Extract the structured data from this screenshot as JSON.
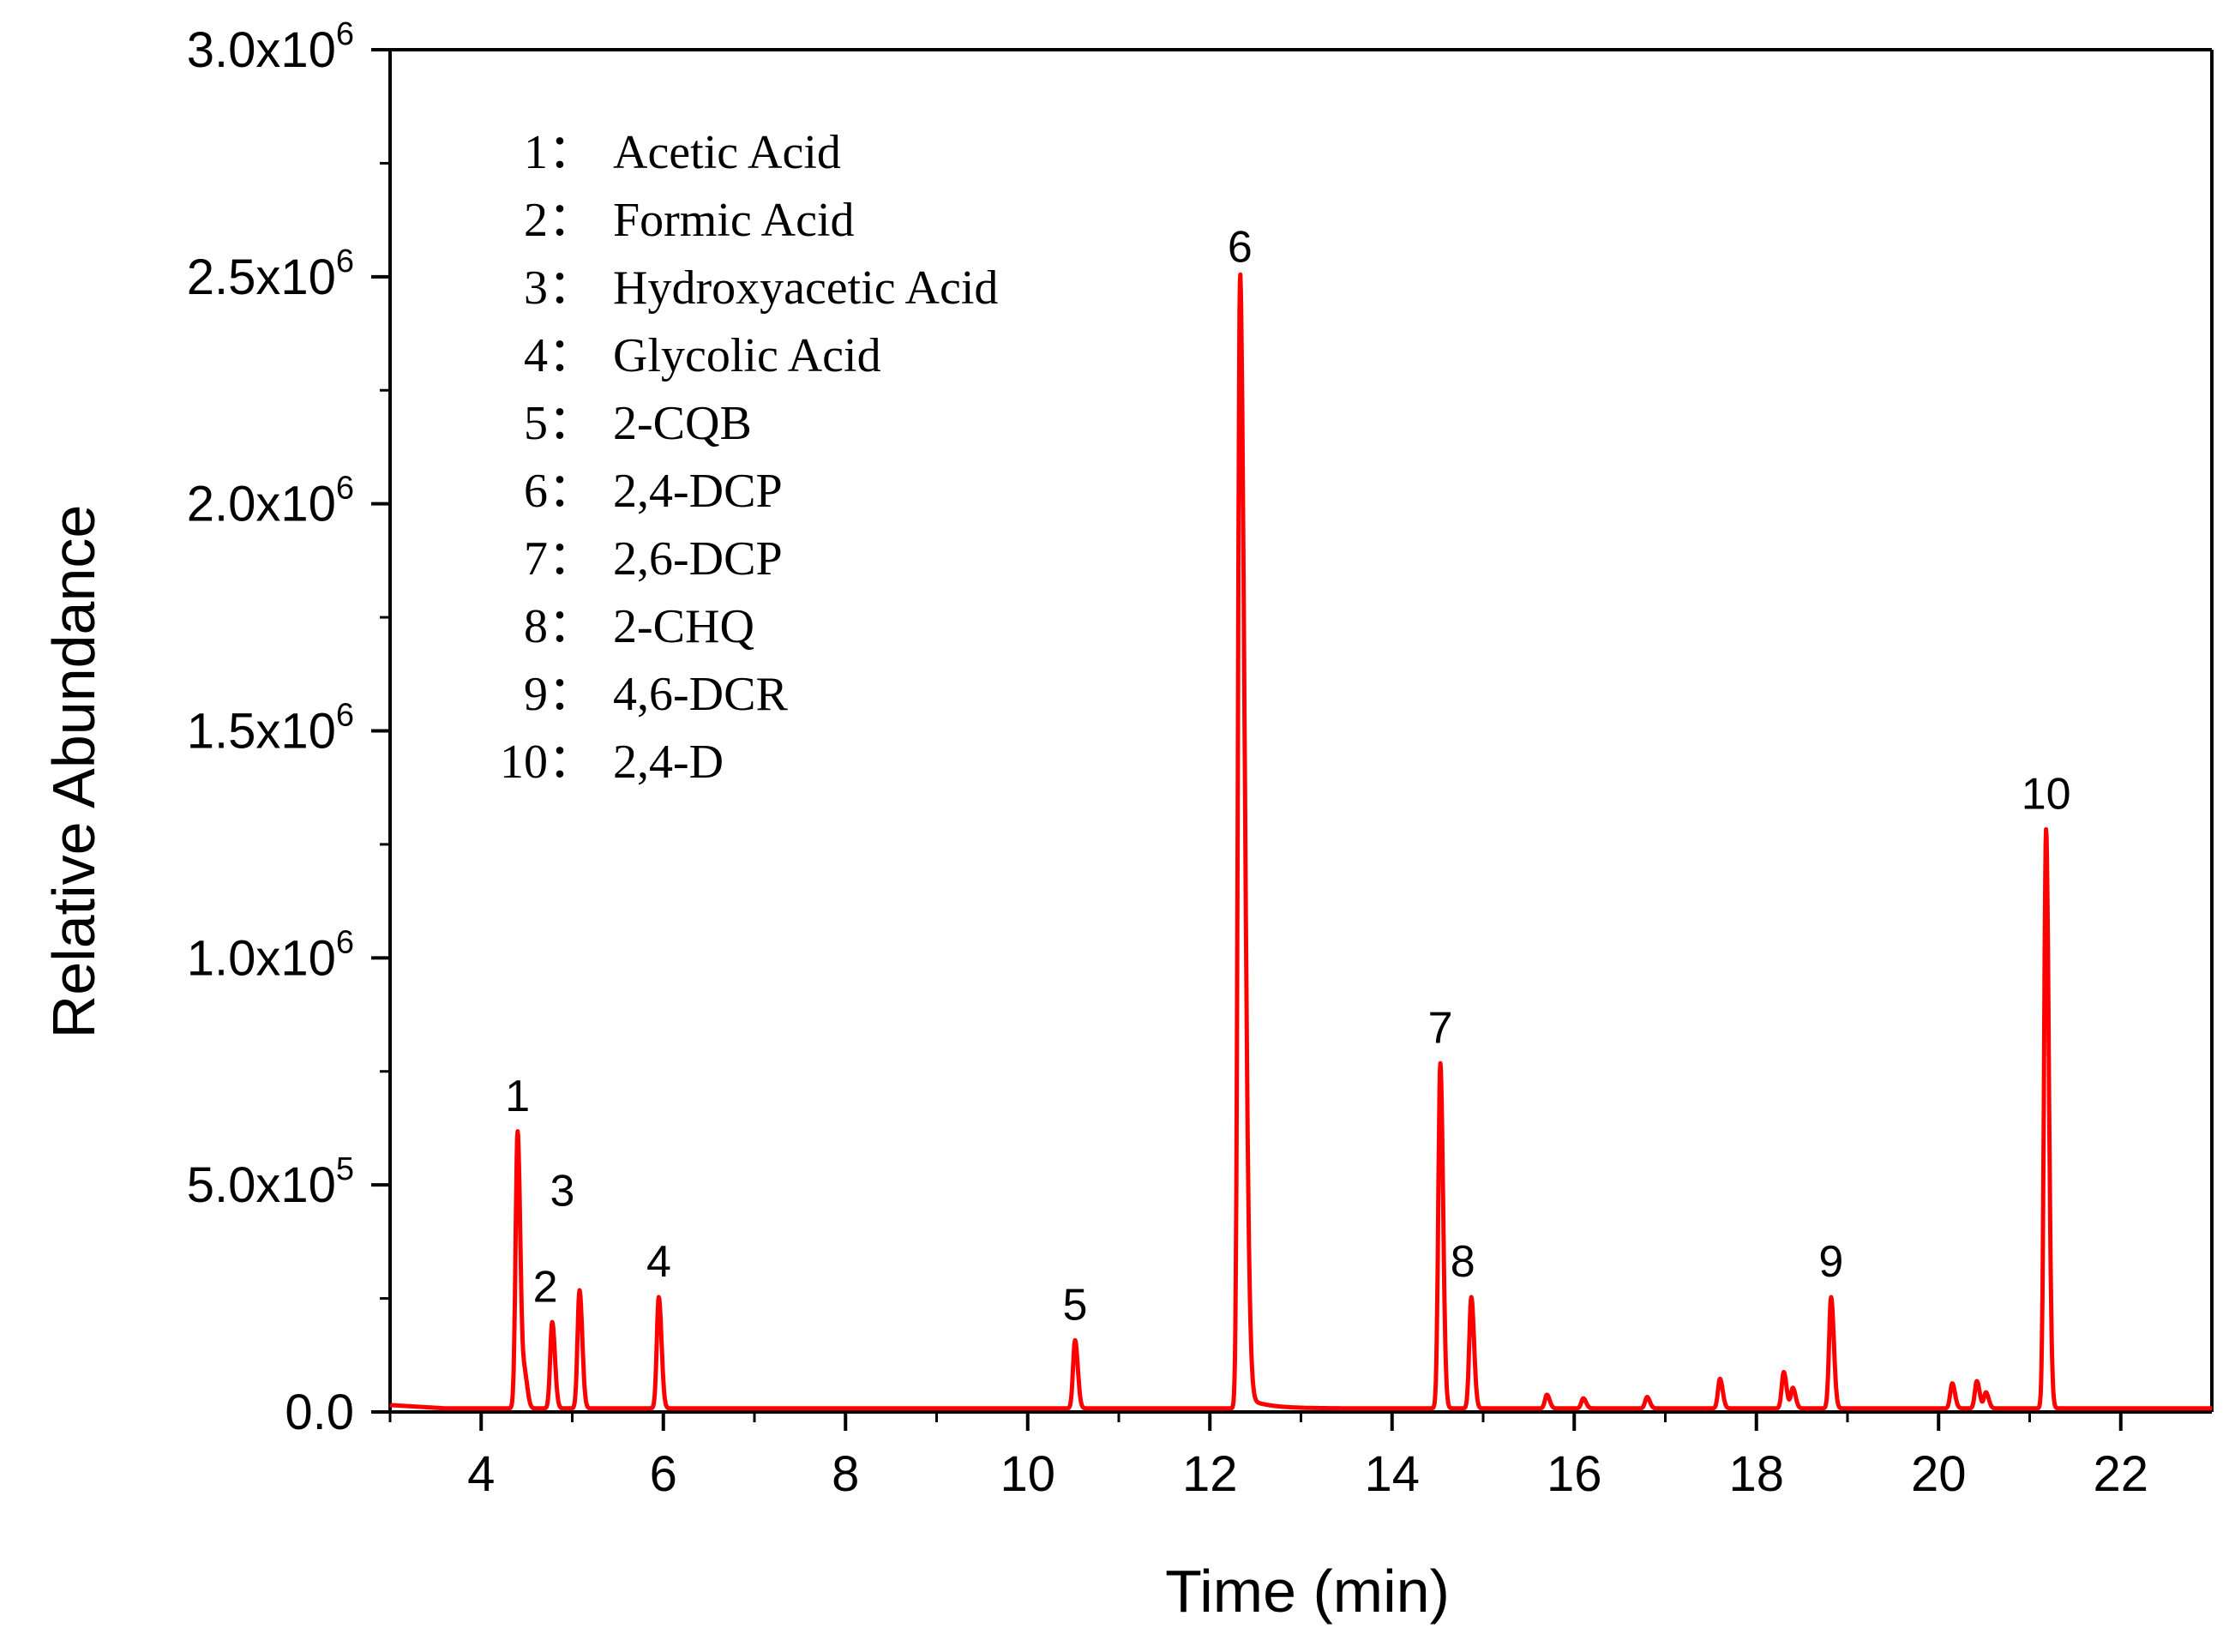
{
  "chart_data": {
    "type": "line",
    "xlabel": "Time (min)",
    "ylabel": "Relative Abundance",
    "xlim": [
      3.0,
      23.0
    ],
    "ylim": [
      0,
      3000000
    ],
    "x_ticks": [
      4,
      6,
      8,
      10,
      12,
      14,
      16,
      18,
      20,
      22
    ],
    "x_tick_labels": [
      "4",
      "6",
      "8",
      "10",
      "12",
      "14",
      "16",
      "18",
      "20",
      "22"
    ],
    "y_ticks": [
      0,
      500000,
      1000000,
      1500000,
      2000000,
      2500000,
      3000000
    ],
    "y_tick_labels": [
      {
        "mant": "0.0",
        "exp": ""
      },
      {
        "mant": "5.0x10",
        "exp": "5"
      },
      {
        "mant": "1.0x10",
        "exp": "6"
      },
      {
        "mant": "1.5x10",
        "exp": "6"
      },
      {
        "mant": "2.0x10",
        "exp": "6"
      },
      {
        "mant": "2.5x10",
        "exp": "6"
      },
      {
        "mant": "3.0x10",
        "exp": "6"
      }
    ],
    "grid": false,
    "line_color": "#ff0000",
    "series": [
      {
        "peaks": [
          {
            "label": "1",
            "x": 4.4,
            "y": 610000
          },
          {
            "label": "2",
            "x": 4.78,
            "y": 190000
          },
          {
            "label": "3",
            "x": 5.08,
            "y": 260000
          },
          {
            "label": "4",
            "x": 5.95,
            "y": 245000
          },
          {
            "label": "5",
            "x": 10.52,
            "y": 150000
          },
          {
            "label": "6",
            "x": 12.33,
            "y": 2480000
          },
          {
            "label": "7",
            "x": 14.53,
            "y": 760000
          },
          {
            "label": "8",
            "x": 14.87,
            "y": 245000
          },
          {
            "label": "9",
            "x": 18.82,
            "y": 245000
          },
          {
            "label": "10",
            "x": 21.18,
            "y": 1275000
          }
        ],
        "minor_peaks": [
          {
            "x": 4.48,
            "y": 70000
          },
          {
            "x": 15.7,
            "y": 30000
          },
          {
            "x": 16.1,
            "y": 22000
          },
          {
            "x": 16.8,
            "y": 25000
          },
          {
            "x": 17.6,
            "y": 65000
          },
          {
            "x": 18.3,
            "y": 80000
          },
          {
            "x": 18.4,
            "y": 45000
          },
          {
            "x": 20.15,
            "y": 55000
          },
          {
            "x": 20.42,
            "y": 60000
          },
          {
            "x": 20.52,
            "y": 35000
          }
        ]
      }
    ],
    "legend": {
      "placement": "top-left",
      "entries": [
        {
          "num": "1：",
          "name": "Acetic Acid"
        },
        {
          "num": "2：",
          "name": "Formic Acid"
        },
        {
          "num": "3：",
          "name": "Hydroxyacetic Acid"
        },
        {
          "num": "4：",
          "name": "Glycolic Acid"
        },
        {
          "num": "5：",
          "name": "2-CQB"
        },
        {
          "num": "6：",
          "name": "2,4-DCP"
        },
        {
          "num": "7：",
          "name": "2,6-DCP"
        },
        {
          "num": "8：",
          "name": "2-CHQ"
        },
        {
          "num": "9：",
          "name": "4,6-DCR"
        },
        {
          "num": "10：",
          "name": "2,4-D"
        }
      ]
    }
  }
}
